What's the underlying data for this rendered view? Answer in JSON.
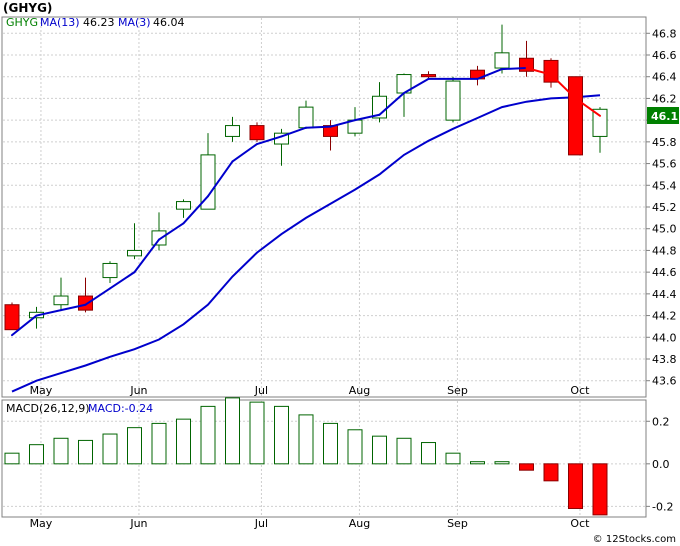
{
  "title": "(GHYG)",
  "colors": {
    "up": "#ffffff",
    "up_stroke": "#006400",
    "down": "#ff0000",
    "down_stroke": "#8b0000",
    "ma_long": "#0000cc",
    "ma_short": "#0000cc",
    "ma_short_down": "#ff0000",
    "macd_bar": "#006400",
    "macd_bar_neg": "#ff0000",
    "price_badge": "#008000",
    "legend_sym": "#008000",
    "legend_ma": "#0000cc"
  },
  "legend": {
    "symbol": "GHYG",
    "ma13_label": "MA(13)",
    "ma13_value": "46.23",
    "ma3_label": "MA(3)",
    "ma3_value": "46.04"
  },
  "macd_legend": {
    "label": "MACD(26,12,9)",
    "value_label": "MACD:-0.24"
  },
  "price_badge": "46.1",
  "copyright": "© 12Stocks.com",
  "chart_data": [
    {
      "type": "candlestick",
      "x_labels": [
        "May",
        "Jun",
        "Jul",
        "Aug",
        "Sep",
        "Oct"
      ],
      "x_label_index": [
        1.1,
        5.1,
        10.1,
        14.1,
        18.1,
        23.1
      ],
      "ylim": [
        43.45,
        46.95
      ],
      "yticks": [
        "43.6",
        "43.8",
        "44.0",
        "44.2",
        "44.4",
        "44.6",
        "44.8",
        "45.0",
        "45.2",
        "45.4",
        "45.6",
        "45.8",
        "46.0",
        "46.2",
        "46.4",
        "46.6",
        "46.8"
      ],
      "grid": true,
      "candles": [
        {
          "o": 44.3,
          "h": 44.32,
          "l": 44.08,
          "c": 44.07
        },
        {
          "o": 44.18,
          "h": 44.28,
          "l": 44.08,
          "c": 44.23
        },
        {
          "o": 44.3,
          "h": 44.55,
          "l": 44.25,
          "c": 44.38
        },
        {
          "o": 44.38,
          "h": 44.55,
          "l": 44.23,
          "c": 44.25
        },
        {
          "o": 44.55,
          "h": 44.7,
          "l": 44.5,
          "c": 44.68
        },
        {
          "o": 44.75,
          "h": 45.05,
          "l": 44.72,
          "c": 44.8
        },
        {
          "o": 44.85,
          "h": 45.15,
          "l": 44.8,
          "c": 44.98
        },
        {
          "o": 45.18,
          "h": 45.27,
          "l": 45.1,
          "c": 45.25
        },
        {
          "o": 45.18,
          "h": 45.88,
          "l": 45.18,
          "c": 45.68
        },
        {
          "o": 45.85,
          "h": 46.03,
          "l": 45.8,
          "c": 45.95
        },
        {
          "o": 45.95,
          "h": 45.98,
          "l": 45.8,
          "c": 45.82
        },
        {
          "o": 45.78,
          "h": 45.92,
          "l": 45.58,
          "c": 45.88
        },
        {
          "o": 45.93,
          "h": 46.18,
          "l": 45.92,
          "c": 46.12
        },
        {
          "o": 45.95,
          "h": 46.0,
          "l": 45.72,
          "c": 45.85
        },
        {
          "o": 45.88,
          "h": 46.12,
          "l": 45.85,
          "c": 46.0
        },
        {
          "o": 46.02,
          "h": 46.35,
          "l": 45.98,
          "c": 46.22
        },
        {
          "o": 46.25,
          "h": 46.43,
          "l": 46.03,
          "c": 46.42
        },
        {
          "o": 46.42,
          "h": 46.45,
          "l": 46.38,
          "c": 46.4
        },
        {
          "o": 46.0,
          "h": 46.4,
          "l": 45.98,
          "c": 46.36
        },
        {
          "o": 46.46,
          "h": 46.5,
          "l": 46.32,
          "c": 46.38
        },
        {
          "o": 46.48,
          "h": 46.88,
          "l": 46.43,
          "c": 46.62
        },
        {
          "o": 46.57,
          "h": 46.73,
          "l": 46.4,
          "c": 46.45
        },
        {
          "o": 46.55,
          "h": 46.57,
          "l": 46.3,
          "c": 46.35
        },
        {
          "o": 46.4,
          "h": 46.4,
          "l": 45.68,
          "c": 45.68
        },
        {
          "o": 45.85,
          "h": 46.12,
          "l": 45.7,
          "c": 46.1
        }
      ],
      "ma_long": [
        {
          "x": 0,
          "y": 43.5
        },
        {
          "x": 1,
          "y": 43.6
        },
        {
          "x": 2,
          "y": 43.67
        },
        {
          "x": 3,
          "y": 43.74
        },
        {
          "x": 4,
          "y": 43.82
        },
        {
          "x": 5,
          "y": 43.89
        },
        {
          "x": 6,
          "y": 43.98
        },
        {
          "x": 7,
          "y": 44.12
        },
        {
          "x": 8,
          "y": 44.3
        },
        {
          "x": 9,
          "y": 44.56
        },
        {
          "x": 10,
          "y": 44.78
        },
        {
          "x": 11,
          "y": 44.95
        },
        {
          "x": 12,
          "y": 45.1
        },
        {
          "x": 13,
          "y": 45.23
        },
        {
          "x": 14,
          "y": 45.36
        },
        {
          "x": 15,
          "y": 45.5
        },
        {
          "x": 16,
          "y": 45.68
        },
        {
          "x": 17,
          "y": 45.81
        },
        {
          "x": 18,
          "y": 45.92
        },
        {
          "x": 19,
          "y": 46.02
        },
        {
          "x": 20,
          "y": 46.12
        },
        {
          "x": 21,
          "y": 46.17
        },
        {
          "x": 22,
          "y": 46.2
        },
        {
          "x": 23,
          "y": 46.21
        },
        {
          "x": 24,
          "y": 46.23
        }
      ],
      "ma_short": [
        {
          "x": 0,
          "y": 44.02
        },
        {
          "x": 1,
          "y": 44.2
        },
        {
          "x": 2,
          "y": 44.25
        },
        {
          "x": 3,
          "y": 44.3
        },
        {
          "x": 4,
          "y": 44.45
        },
        {
          "x": 5,
          "y": 44.6
        },
        {
          "x": 6,
          "y": 44.9
        },
        {
          "x": 7,
          "y": 45.05
        },
        {
          "x": 8,
          "y": 45.3
        },
        {
          "x": 9,
          "y": 45.62
        },
        {
          "x": 10,
          "y": 45.78
        },
        {
          "x": 11,
          "y": 45.85
        },
        {
          "x": 12,
          "y": 45.93
        },
        {
          "x": 13,
          "y": 45.94
        },
        {
          "x": 14,
          "y": 46.0
        },
        {
          "x": 15,
          "y": 46.05
        },
        {
          "x": 16,
          "y": 46.25
        },
        {
          "x": 17,
          "y": 46.38
        },
        {
          "x": 18,
          "y": 46.38
        },
        {
          "x": 19,
          "y": 46.38
        },
        {
          "x": 20,
          "y": 46.47
        },
        {
          "x": 21,
          "y": 46.48
        },
        {
          "x": 22,
          "y": 46.42
        },
        {
          "x": 23,
          "y": 46.2
        },
        {
          "x": 24,
          "y": 46.04
        }
      ]
    },
    {
      "type": "bar",
      "ylim": [
        -0.25,
        0.3
      ],
      "yticks": [
        "-0.2",
        "0.0",
        "0.2"
      ],
      "zero_line": true,
      "values": [
        0.05,
        0.09,
        0.12,
        0.11,
        0.14,
        0.17,
        0.19,
        0.21,
        0.27,
        0.31,
        0.29,
        0.27,
        0.23,
        0.19,
        0.16,
        0.13,
        0.12,
        0.1,
        0.05,
        0.01,
        0.01,
        -0.03,
        -0.08,
        -0.21,
        -0.24
      ]
    }
  ]
}
